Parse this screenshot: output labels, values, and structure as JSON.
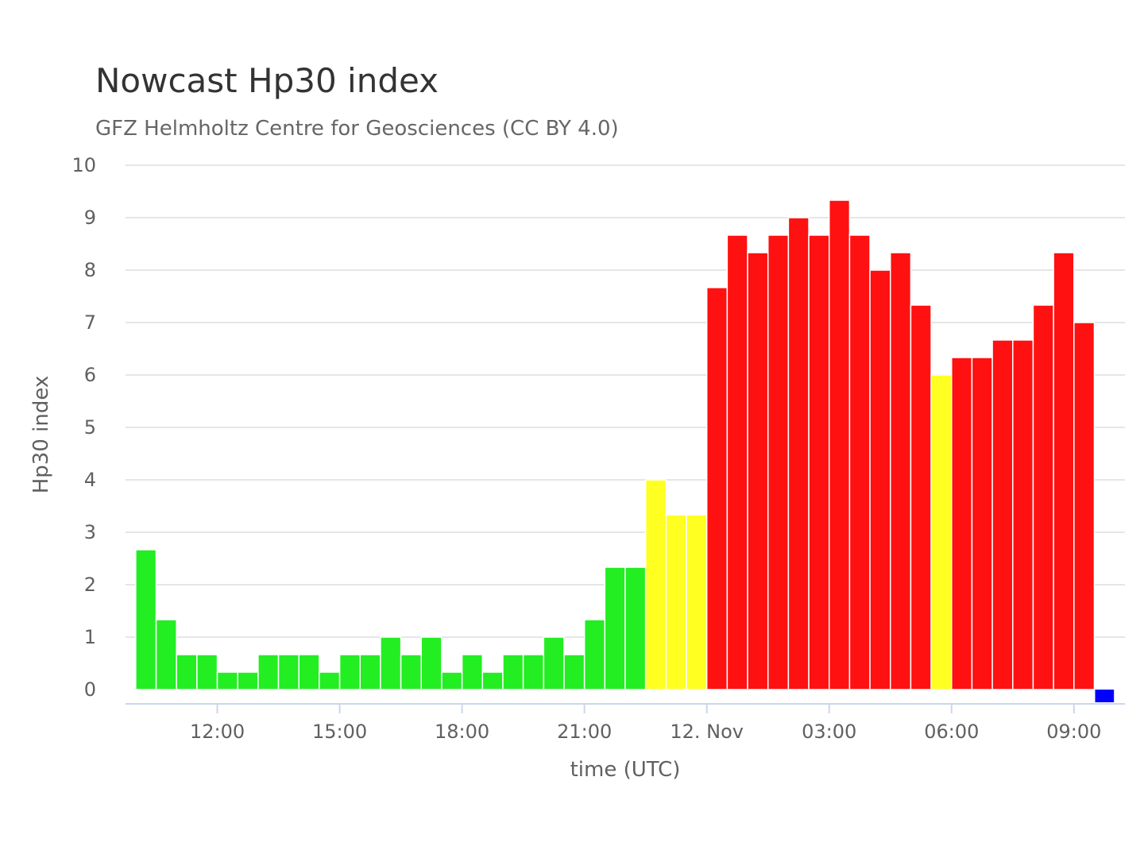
{
  "chart_data": {
    "type": "bar",
    "title": "Nowcast Hp30 index",
    "subtitle": "GFZ Helmholtz Centre for Geosciences (CC BY 4.0)",
    "xlabel": "time (UTC)",
    "ylabel": "Hp30 index",
    "ylim": [
      0,
      10
    ],
    "yticks": [
      "0",
      "1",
      "2",
      "3",
      "4",
      "5",
      "6",
      "7",
      "8",
      "9",
      "10"
    ],
    "xlim": [
      "2025-11-11 09:45",
      "2025-11-12 10:15"
    ],
    "xticks": [
      {
        "time": "2025-11-11 12:00",
        "label": "12:00"
      },
      {
        "time": "2025-11-11 15:00",
        "label": "15:00"
      },
      {
        "time": "2025-11-11 18:00",
        "label": "18:00"
      },
      {
        "time": "2025-11-11 21:00",
        "label": "21:00"
      },
      {
        "time": "2025-11-12 00:00",
        "label": "12. Nov"
      },
      {
        "time": "2025-11-12 03:00",
        "label": "03:00"
      },
      {
        "time": "2025-11-12 06:00",
        "label": "06:00"
      },
      {
        "time": "2025-11-12 09:00",
        "label": "09:00"
      }
    ],
    "grid": true,
    "colors": {
      "quiet": "#22ee22",
      "active": "#ffff22",
      "storm": "#ff1111",
      "missing": "#0000ff"
    },
    "bars": [
      {
        "start": "2025-11-11 10:00",
        "value": 2.667,
        "level": "quiet"
      },
      {
        "start": "2025-11-11 10:30",
        "value": 1.333,
        "level": "quiet"
      },
      {
        "start": "2025-11-11 11:00",
        "value": 0.667,
        "level": "quiet"
      },
      {
        "start": "2025-11-11 11:30",
        "value": 0.667,
        "level": "quiet"
      },
      {
        "start": "2025-11-11 12:00",
        "value": 0.333,
        "level": "quiet"
      },
      {
        "start": "2025-11-11 12:30",
        "value": 0.333,
        "level": "quiet"
      },
      {
        "start": "2025-11-11 13:00",
        "value": 0.667,
        "level": "quiet"
      },
      {
        "start": "2025-11-11 13:30",
        "value": 0.667,
        "level": "quiet"
      },
      {
        "start": "2025-11-11 14:00",
        "value": 0.667,
        "level": "quiet"
      },
      {
        "start": "2025-11-11 14:30",
        "value": 0.333,
        "level": "quiet"
      },
      {
        "start": "2025-11-11 15:00",
        "value": 0.667,
        "level": "quiet"
      },
      {
        "start": "2025-11-11 15:30",
        "value": 0.667,
        "level": "quiet"
      },
      {
        "start": "2025-11-11 16:00",
        "value": 1.0,
        "level": "quiet"
      },
      {
        "start": "2025-11-11 16:30",
        "value": 0.667,
        "level": "quiet"
      },
      {
        "start": "2025-11-11 17:00",
        "value": 1.0,
        "level": "quiet"
      },
      {
        "start": "2025-11-11 17:30",
        "value": 0.333,
        "level": "quiet"
      },
      {
        "start": "2025-11-11 18:00",
        "value": 0.667,
        "level": "quiet"
      },
      {
        "start": "2025-11-11 18:30",
        "value": 0.333,
        "level": "quiet"
      },
      {
        "start": "2025-11-11 19:00",
        "value": 0.667,
        "level": "quiet"
      },
      {
        "start": "2025-11-11 19:30",
        "value": 0.667,
        "level": "quiet"
      },
      {
        "start": "2025-11-11 20:00",
        "value": 1.0,
        "level": "quiet"
      },
      {
        "start": "2025-11-11 20:30",
        "value": 0.667,
        "level": "quiet"
      },
      {
        "start": "2025-11-11 21:00",
        "value": 1.333,
        "level": "quiet"
      },
      {
        "start": "2025-11-11 21:30",
        "value": 2.333,
        "level": "quiet"
      },
      {
        "start": "2025-11-11 22:00",
        "value": 2.333,
        "level": "quiet"
      },
      {
        "start": "2025-11-11 22:30",
        "value": 4.0,
        "level": "active"
      },
      {
        "start": "2025-11-11 23:00",
        "value": 3.333,
        "level": "active"
      },
      {
        "start": "2025-11-11 23:30",
        "value": 3.333,
        "level": "active"
      },
      {
        "start": "2025-11-12 00:00",
        "value": 7.667,
        "level": "storm"
      },
      {
        "start": "2025-11-12 00:30",
        "value": 8.667,
        "level": "storm"
      },
      {
        "start": "2025-11-12 01:00",
        "value": 8.333,
        "level": "storm"
      },
      {
        "start": "2025-11-12 01:30",
        "value": 8.667,
        "level": "storm"
      },
      {
        "start": "2025-11-12 02:00",
        "value": 9.0,
        "level": "storm"
      },
      {
        "start": "2025-11-12 02:30",
        "value": 8.667,
        "level": "storm"
      },
      {
        "start": "2025-11-12 03:00",
        "value": 9.333,
        "level": "storm"
      },
      {
        "start": "2025-11-12 03:30",
        "value": 8.667,
        "level": "storm"
      },
      {
        "start": "2025-11-12 04:00",
        "value": 8.0,
        "level": "storm"
      },
      {
        "start": "2025-11-12 04:30",
        "value": 8.333,
        "level": "storm"
      },
      {
        "start": "2025-11-12 05:00",
        "value": 7.333,
        "level": "storm"
      },
      {
        "start": "2025-11-12 05:30",
        "value": 6.0,
        "level": "active"
      },
      {
        "start": "2025-11-12 06:00",
        "value": 6.333,
        "level": "storm"
      },
      {
        "start": "2025-11-12 06:30",
        "value": 6.333,
        "level": "storm"
      },
      {
        "start": "2025-11-12 07:00",
        "value": 6.667,
        "level": "storm"
      },
      {
        "start": "2025-11-12 07:30",
        "value": 6.667,
        "level": "storm"
      },
      {
        "start": "2025-11-12 08:00",
        "value": 7.333,
        "level": "storm"
      },
      {
        "start": "2025-11-12 08:30",
        "value": 8.333,
        "level": "storm"
      },
      {
        "start": "2025-11-12 09:00",
        "value": 7.0,
        "level": "storm"
      },
      {
        "start": "2025-11-12 09:30",
        "value": null,
        "level": "missing"
      }
    ]
  }
}
